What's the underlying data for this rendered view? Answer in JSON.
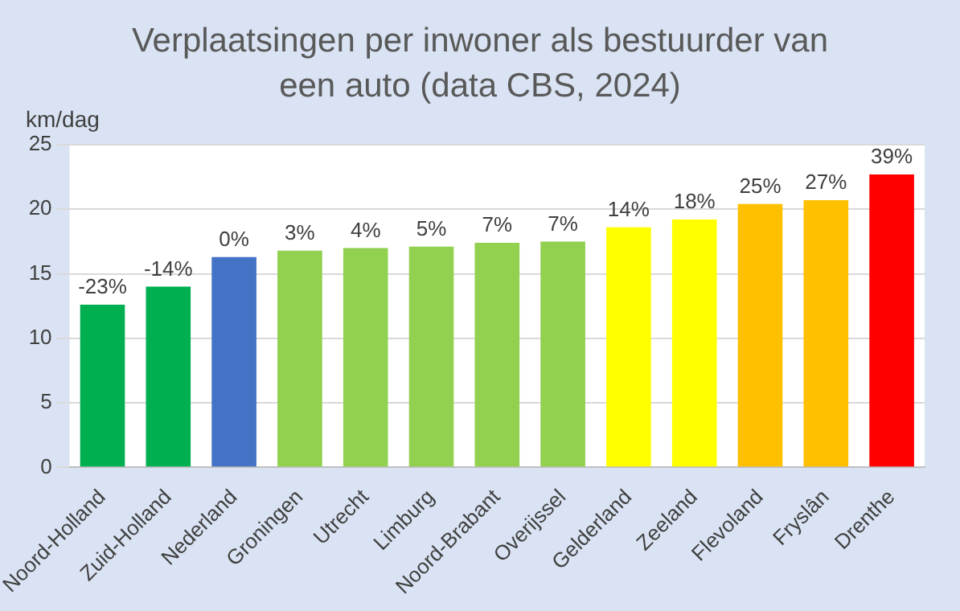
{
  "chart_data": {
    "type": "bar",
    "title": "Verplaatsingen per inwoner als bestuurder van een auto (data CBS, 2024)",
    "ylabel": "km/dag",
    "categories": [
      "Noord-Holland",
      "Zuid-Holland",
      "Nederland",
      "Groningen",
      "Utrecht",
      "Limburg",
      "Noord-Brabant",
      "Overijssel",
      "Gelderland",
      "Zeeland",
      "Flevoland",
      "Fryslân",
      "Drenthe"
    ],
    "values": [
      12.6,
      14.0,
      16.3,
      16.8,
      17.0,
      17.1,
      17.4,
      17.5,
      18.6,
      19.2,
      20.4,
      20.7,
      22.7
    ],
    "colors": [
      "#00b050",
      "#00b050",
      "#4472c4",
      "#92d050",
      "#92d050",
      "#92d050",
      "#92d050",
      "#92d050",
      "#ffff00",
      "#ffff00",
      "#ffc000",
      "#ffc000",
      "#ff0000"
    ],
    "annotations": [
      {
        "text": "-23%",
        "x": "Noord-Holland",
        "y": 12.6
      },
      {
        "text": "-14%",
        "x": "Zuid-Holland",
        "y": 14.0
      },
      {
        "text": "0%",
        "x": "Nederland",
        "y": 16.3
      },
      {
        "text": "3%",
        "x": "Groningen",
        "y": 16.8
      },
      {
        "text": "4%",
        "x": "Utrecht",
        "y": 17.0
      },
      {
        "text": "5%",
        "x": "Limburg",
        "y": 17.1
      },
      {
        "text": "7%",
        "x": "Noord-Brabant",
        "y": 17.4
      },
      {
        "text": "7%",
        "x": "Overijssel",
        "y": 17.5
      },
      {
        "text": "14%",
        "x": "Gelderland",
        "y": 18.6
      },
      {
        "text": "18%",
        "x": "Zeeland",
        "y": 19.2
      },
      {
        "text": "25%",
        "x": "Flevoland",
        "y": 20.4
      },
      {
        "text": "27%",
        "x": "Fryslân",
        "y": 20.7
      },
      {
        "text": "39%",
        "x": "Drenthe",
        "y": 22.7
      }
    ],
    "ylim": [
      0,
      25
    ],
    "yticks": [
      0,
      5,
      10,
      15,
      20,
      25
    ],
    "grid": "y",
    "legend": false
  }
}
